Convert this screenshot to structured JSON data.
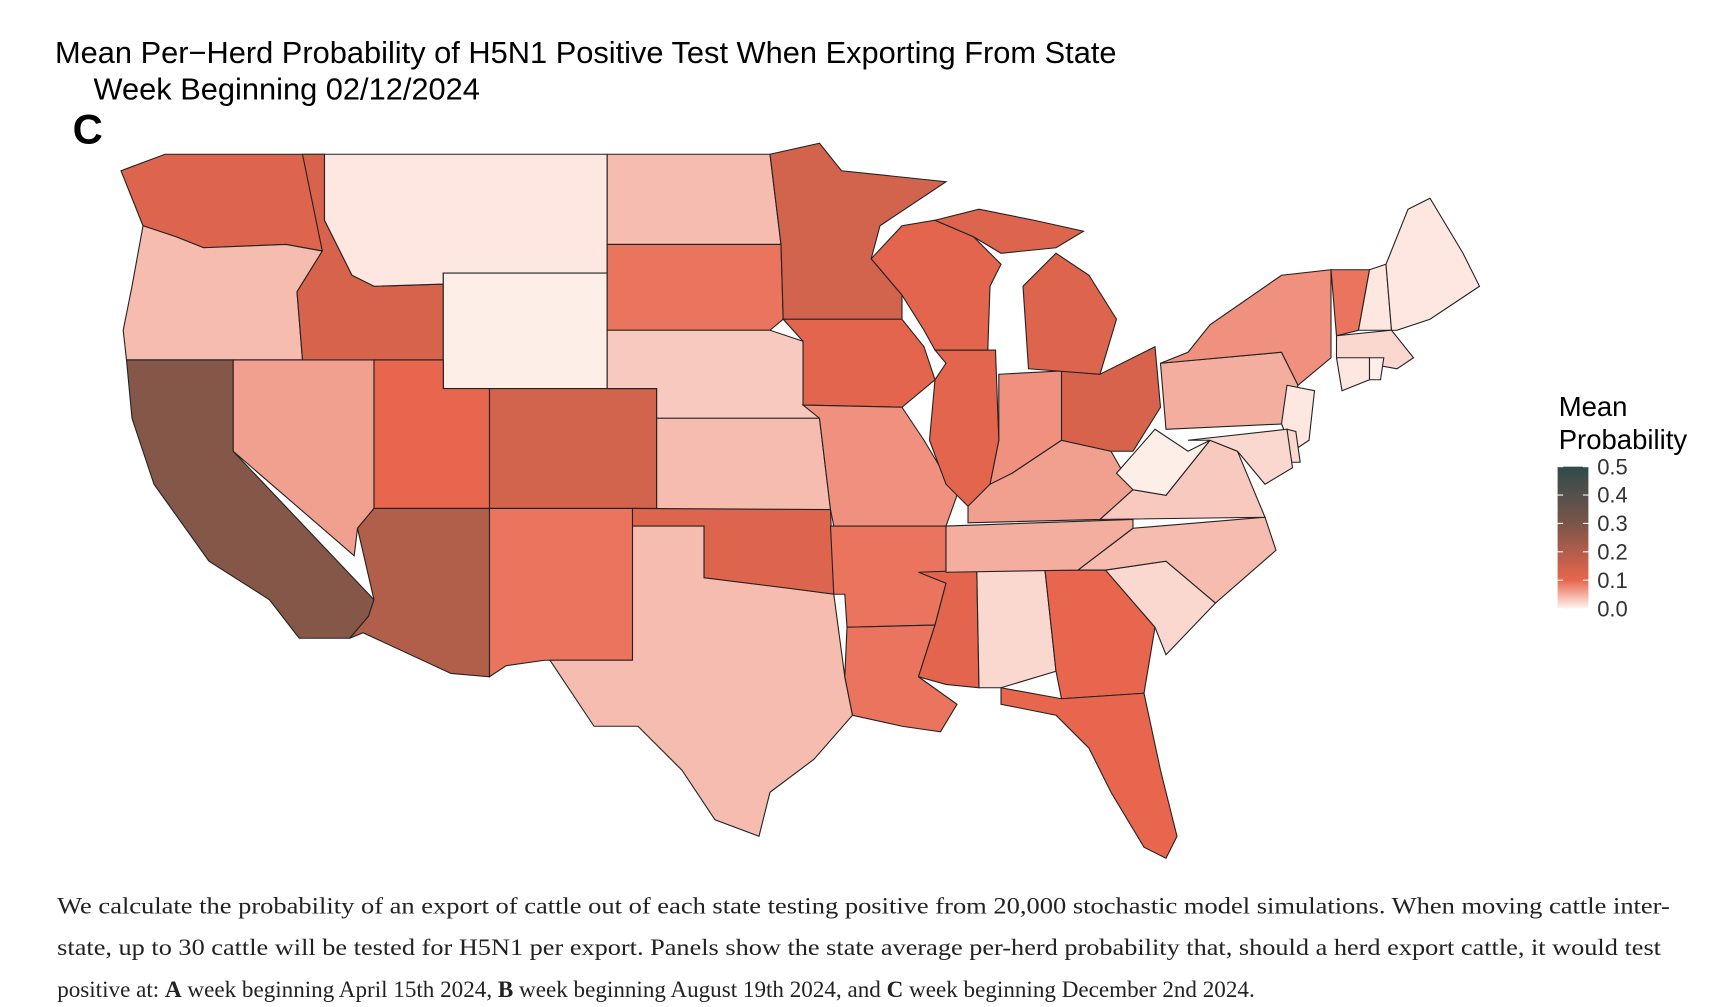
{
  "chart_data": {
    "type": "choropleth",
    "title": "Mean Per−Herd Probability of H5N1 Positive Test When Exporting From State",
    "subtitle": "Week Beginning 02/12/2024",
    "panel_label": "C",
    "legend_title": [
      "Mean",
      "Probability"
    ],
    "colorscale": [
      [
        0,
        "#fff5f0"
      ],
      [
        0.1,
        "#e8664d"
      ],
      [
        0.3,
        "#7a5549"
      ],
      [
        0.5,
        "#2f4b4b"
      ]
    ],
    "clim": [
      0,
      0.5
    ],
    "cticks": [
      0.5,
      0.4,
      0.3,
      0.2,
      {
        "value": 0.1,
        "label": "0.1"
      },
      {
        "value": 0,
        "label": "0.0"
      }
    ],
    "values": [
      0.12,
      0.04,
      0.28,
      0.06,
      0.13,
      0.01,
      0.005,
      0.1,
      0.14,
      0.2,
      0.09,
      0.04,
      0.09,
      0.03,
      0.04,
      0.12,
      0.04,
      0.14,
      0.11,
      0.07,
      0.09,
      0.09,
      0.11,
      0.02,
      0.1,
      0.1,
      0.02,
      0.04,
      0.05,
      0.06,
      0.03,
      0.005,
      0.13,
      0.07,
      0.11,
      0.11,
      0.12,
      0.05,
      0.07,
      0.09,
      0.01,
      0.01,
      0.02,
      0.01,
      0.005,
      0.01,
      0.02,
      0.02
    ],
    "caption": [
      "We calculate the probability of an export of cattle out of each state testing positive from 20,000 stochastic model simulations. When moving cattle inter-",
      "state, up to 30 cattle will be tested for H5N1 per export. Panels show the state average per-herd probability that, should a herd export cattle, it would test",
      [
        "positive at: ",
        "A",
        " week beginning April 15th 2024, ",
        "B",
        " week beginning August 19th 2024, and ",
        "C",
        " week beginning December 2nd 2024."
      ]
    ]
  }
}
